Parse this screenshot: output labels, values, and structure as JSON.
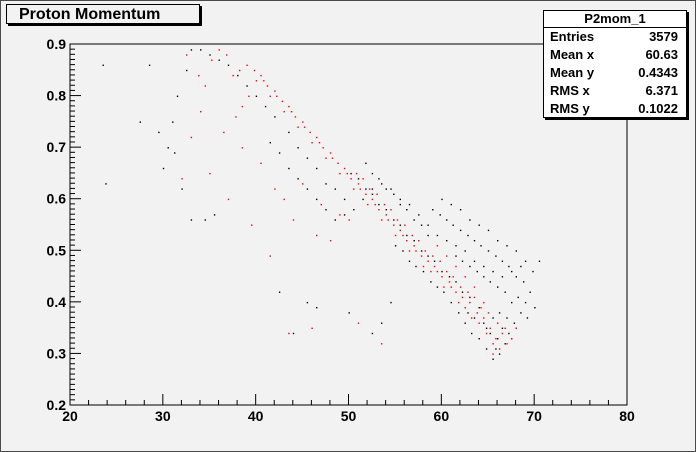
{
  "title": "Proton Momentum",
  "stats": {
    "name": "P2mom_1",
    "rows": [
      {
        "label": "Entries",
        "value": "3579"
      },
      {
        "label": "Mean x",
        "value": "60.63"
      },
      {
        "label": "Mean y",
        "value": "0.4343"
      },
      {
        "label": "RMS x",
        "value": "6.371"
      },
      {
        "label": "RMS y",
        "value": "0.1022"
      }
    ]
  },
  "chart_data": {
    "type": "scatter",
    "title": "Proton Momentum",
    "xlabel": "",
    "ylabel": "",
    "xlim": [
      20,
      80
    ],
    "ylim": [
      0.2,
      0.9
    ],
    "x_ticks": [
      "20",
      "30",
      "40",
      "50",
      "60",
      "70",
      "80"
    ],
    "y_ticks": [
      "0.2",
      "0.3",
      "0.4",
      "0.5",
      "0.6",
      "0.7",
      "0.8",
      "0.9"
    ],
    "grid": false,
    "colors": {
      "series_a": "#000000",
      "series_b": "#ff0000"
    },
    "series": [
      {
        "color": "#000000",
        "points": [
          [
            64.5,
            0.36
          ],
          [
            65.2,
            0.34
          ],
          [
            66.0,
            0.33
          ],
          [
            66.8,
            0.32
          ],
          [
            65.8,
            0.31
          ],
          [
            64.8,
            0.35
          ],
          [
            63.5,
            0.37
          ],
          [
            62.8,
            0.38
          ],
          [
            66.5,
            0.35
          ],
          [
            67.2,
            0.34
          ],
          [
            65.5,
            0.37
          ],
          [
            64.0,
            0.39
          ],
          [
            63.0,
            0.41
          ],
          [
            62.2,
            0.42
          ],
          [
            61.5,
            0.44
          ],
          [
            60.8,
            0.45
          ],
          [
            60.0,
            0.46
          ],
          [
            59.2,
            0.48
          ],
          [
            58.5,
            0.49
          ],
          [
            57.8,
            0.5
          ],
          [
            57.0,
            0.52
          ],
          [
            56.2,
            0.53
          ],
          [
            55.5,
            0.55
          ],
          [
            54.8,
            0.56
          ],
          [
            54.0,
            0.58
          ],
          [
            53.2,
            0.59
          ],
          [
            52.5,
            0.61
          ],
          [
            51.8,
            0.62
          ],
          [
            51.0,
            0.64
          ],
          [
            50.2,
            0.65
          ],
          [
            66.2,
            0.38
          ],
          [
            67.0,
            0.37
          ],
          [
            67.8,
            0.36
          ],
          [
            68.5,
            0.38
          ],
          [
            69.0,
            0.4
          ],
          [
            69.5,
            0.42
          ],
          [
            68.8,
            0.44
          ],
          [
            68.0,
            0.45
          ],
          [
            67.2,
            0.47
          ],
          [
            66.5,
            0.48
          ],
          [
            65.8,
            0.49
          ],
          [
            65.0,
            0.5
          ],
          [
            64.2,
            0.51
          ],
          [
            63.5,
            0.52
          ],
          [
            62.8,
            0.53
          ],
          [
            62.0,
            0.54
          ],
          [
            61.2,
            0.55
          ],
          [
            60.5,
            0.56
          ],
          [
            59.8,
            0.57
          ],
          [
            59.0,
            0.58
          ],
          [
            67.5,
            0.4
          ],
          [
            68.2,
            0.41
          ],
          [
            66.8,
            0.42
          ],
          [
            66.0,
            0.43
          ],
          [
            65.2,
            0.44
          ],
          [
            64.5,
            0.45
          ],
          [
            63.8,
            0.46
          ],
          [
            63.0,
            0.47
          ],
          [
            62.2,
            0.48
          ],
          [
            61.5,
            0.49
          ],
          [
            70.0,
            0.39
          ],
          [
            69.2,
            0.37
          ],
          [
            68.0,
            0.35
          ],
          [
            67.5,
            0.33
          ],
          [
            66.2,
            0.3
          ],
          [
            65.5,
            0.29
          ],
          [
            64.8,
            0.31
          ],
          [
            64.0,
            0.33
          ],
          [
            63.2,
            0.34
          ],
          [
            62.5,
            0.36
          ],
          [
            61.8,
            0.38
          ],
          [
            61.0,
            0.4
          ],
          [
            60.2,
            0.42
          ],
          [
            59.5,
            0.43
          ],
          [
            58.8,
            0.44
          ],
          [
            58.0,
            0.46
          ],
          [
            57.2,
            0.47
          ],
          [
            56.5,
            0.48
          ],
          [
            55.8,
            0.5
          ],
          [
            55.0,
            0.51
          ],
          [
            58.5,
            0.53
          ],
          [
            57.8,
            0.55
          ],
          [
            57.0,
            0.56
          ],
          [
            56.2,
            0.58
          ],
          [
            55.5,
            0.59
          ],
          [
            54.8,
            0.61
          ],
          [
            54.0,
            0.62
          ],
          [
            53.2,
            0.64
          ],
          [
            52.5,
            0.65
          ],
          [
            51.8,
            0.67
          ],
          [
            48.5,
            0.62
          ],
          [
            49.5,
            0.6
          ],
          [
            46.5,
            0.66
          ],
          [
            47.5,
            0.63
          ],
          [
            44.5,
            0.7
          ],
          [
            45.5,
            0.68
          ],
          [
            43.5,
            0.73
          ],
          [
            42.0,
            0.76
          ],
          [
            41.0,
            0.78
          ],
          [
            40.0,
            0.8
          ],
          [
            39.0,
            0.82
          ],
          [
            38.0,
            0.84
          ],
          [
            37.0,
            0.86
          ],
          [
            36.0,
            0.87
          ],
          [
            35.0,
            0.88
          ],
          [
            34.0,
            0.89
          ],
          [
            33.0,
            0.89
          ],
          [
            32.5,
            0.85
          ],
          [
            31.5,
            0.8
          ],
          [
            31.0,
            0.75
          ],
          [
            23.5,
            0.86
          ],
          [
            23.8,
            0.63
          ],
          [
            32.0,
            0.62
          ],
          [
            30.5,
            0.7
          ],
          [
            29.5,
            0.73
          ],
          [
            27.5,
            0.75
          ],
          [
            31.2,
            0.69
          ],
          [
            28.5,
            0.86
          ],
          [
            35.5,
            0.57
          ],
          [
            34.5,
            0.56
          ],
          [
            33.0,
            0.56
          ],
          [
            30.0,
            0.66
          ],
          [
            42.5,
            0.42
          ],
          [
            45.5,
            0.4
          ],
          [
            46.5,
            0.39
          ],
          [
            52.5,
            0.34
          ],
          [
            53.5,
            0.36
          ],
          [
            44.0,
            0.34
          ],
          [
            50.0,
            0.38
          ],
          [
            54.5,
            0.4
          ],
          [
            60.0,
            0.6
          ],
          [
            61.0,
            0.59
          ],
          [
            62.0,
            0.58
          ],
          [
            63.0,
            0.56
          ],
          [
            64.0,
            0.55
          ],
          [
            65.0,
            0.54
          ],
          [
            66.0,
            0.52
          ],
          [
            67.0,
            0.51
          ],
          [
            68.0,
            0.5
          ],
          [
            69.0,
            0.48
          ],
          [
            70.5,
            0.48
          ],
          [
            69.8,
            0.46
          ],
          [
            68.5,
            0.47
          ],
          [
            67.5,
            0.46
          ],
          [
            66.5,
            0.45
          ],
          [
            65.5,
            0.46
          ],
          [
            64.5,
            0.47
          ],
          [
            63.5,
            0.48
          ],
          [
            62.5,
            0.5
          ],
          [
            61.5,
            0.51
          ],
          [
            60.5,
            0.52
          ],
          [
            59.5,
            0.53
          ],
          [
            58.5,
            0.55
          ],
          [
            57.5,
            0.57
          ],
          [
            56.5,
            0.59
          ],
          [
            55.5,
            0.6
          ],
          [
            54.5,
            0.62
          ],
          [
            53.5,
            0.63
          ],
          [
            52.5,
            0.62
          ],
          [
            51.5,
            0.6
          ],
          [
            50.5,
            0.58
          ],
          [
            49.5,
            0.57
          ],
          [
            48.5,
            0.56
          ],
          [
            47.5,
            0.58
          ],
          [
            46.5,
            0.6
          ],
          [
            45.5,
            0.62
          ],
          [
            44.5,
            0.64
          ],
          [
            43.5,
            0.66
          ],
          [
            42.5,
            0.69
          ],
          [
            41.5,
            0.71
          ]
        ]
      },
      {
        "color": "#ff0000",
        "points": [
          [
            66.5,
            0.34
          ],
          [
            65.8,
            0.33
          ],
          [
            66.8,
            0.35
          ],
          [
            65.2,
            0.35
          ],
          [
            64.5,
            0.37
          ],
          [
            63.8,
            0.38
          ],
          [
            63.0,
            0.4
          ],
          [
            62.2,
            0.41
          ],
          [
            61.5,
            0.42
          ],
          [
            60.8,
            0.44
          ],
          [
            60.0,
            0.45
          ],
          [
            59.2,
            0.47
          ],
          [
            58.5,
            0.48
          ],
          [
            57.8,
            0.49
          ],
          [
            57.0,
            0.51
          ],
          [
            56.2,
            0.52
          ],
          [
            55.5,
            0.54
          ],
          [
            54.8,
            0.55
          ],
          [
            54.0,
            0.57
          ],
          [
            53.2,
            0.58
          ],
          [
            52.5,
            0.6
          ],
          [
            51.8,
            0.61
          ],
          [
            51.0,
            0.63
          ],
          [
            50.2,
            0.64
          ],
          [
            49.5,
            0.66
          ],
          [
            48.8,
            0.67
          ],
          [
            48.0,
            0.69
          ],
          [
            47.2,
            0.7
          ],
          [
            46.5,
            0.72
          ],
          [
            45.8,
            0.73
          ],
          [
            45.0,
            0.75
          ],
          [
            44.2,
            0.76
          ],
          [
            43.5,
            0.78
          ],
          [
            42.8,
            0.79
          ],
          [
            42.0,
            0.81
          ],
          [
            41.2,
            0.82
          ],
          [
            40.5,
            0.84
          ],
          [
            39.8,
            0.85
          ],
          [
            39.0,
            0.86
          ],
          [
            38.2,
            0.85
          ],
          [
            37.5,
            0.84
          ],
          [
            36.8,
            0.88
          ],
          [
            36.0,
            0.89
          ],
          [
            35.2,
            0.87
          ],
          [
            34.5,
            0.82
          ],
          [
            33.8,
            0.84
          ],
          [
            32.5,
            0.88
          ],
          [
            34.0,
            0.77
          ],
          [
            33.0,
            0.72
          ],
          [
            32.0,
            0.64
          ],
          [
            67.5,
            0.33
          ],
          [
            66.2,
            0.31
          ],
          [
            65.5,
            0.32
          ],
          [
            64.8,
            0.34
          ],
          [
            64.0,
            0.36
          ],
          [
            63.2,
            0.37
          ],
          [
            62.5,
            0.39
          ],
          [
            61.8,
            0.4
          ],
          [
            61.0,
            0.43
          ],
          [
            60.2,
            0.43
          ],
          [
            59.5,
            0.46
          ],
          [
            58.8,
            0.46
          ],
          [
            58.0,
            0.47
          ],
          [
            57.2,
            0.5
          ],
          [
            56.5,
            0.5
          ],
          [
            55.8,
            0.53
          ],
          [
            55.0,
            0.53
          ],
          [
            54.2,
            0.56
          ],
          [
            53.5,
            0.56
          ],
          [
            52.8,
            0.59
          ],
          [
            52.0,
            0.59
          ],
          [
            51.2,
            0.62
          ],
          [
            50.5,
            0.62
          ],
          [
            49.8,
            0.65
          ],
          [
            49.0,
            0.65
          ],
          [
            48.2,
            0.68
          ],
          [
            47.5,
            0.68
          ],
          [
            46.8,
            0.71
          ],
          [
            46.0,
            0.71
          ],
          [
            45.2,
            0.74
          ],
          [
            44.5,
            0.74
          ],
          [
            43.8,
            0.77
          ],
          [
            43.0,
            0.77
          ],
          [
            42.2,
            0.8
          ],
          [
            41.5,
            0.8
          ],
          [
            40.8,
            0.83
          ],
          [
            40.0,
            0.83
          ],
          [
            39.2,
            0.8
          ],
          [
            38.5,
            0.78
          ],
          [
            37.8,
            0.76
          ],
          [
            65.0,
            0.38
          ],
          [
            64.2,
            0.39
          ],
          [
            63.5,
            0.41
          ],
          [
            62.8,
            0.42
          ],
          [
            62.0,
            0.43
          ],
          [
            61.2,
            0.45
          ],
          [
            60.5,
            0.46
          ],
          [
            59.8,
            0.48
          ],
          [
            59.0,
            0.49
          ],
          [
            58.2,
            0.5
          ],
          [
            57.5,
            0.52
          ],
          [
            56.8,
            0.53
          ],
          [
            56.0,
            0.55
          ],
          [
            55.2,
            0.56
          ],
          [
            54.5,
            0.58
          ],
          [
            53.8,
            0.59
          ],
          [
            53.0,
            0.61
          ],
          [
            52.2,
            0.62
          ],
          [
            51.5,
            0.64
          ],
          [
            50.8,
            0.65
          ],
          [
            66.0,
            0.36
          ],
          [
            67.0,
            0.32
          ],
          [
            68.0,
            0.35
          ],
          [
            65.5,
            0.3
          ],
          [
            64.5,
            0.4
          ],
          [
            63.5,
            0.43
          ],
          [
            62.5,
            0.45
          ],
          [
            61.5,
            0.47
          ],
          [
            60.5,
            0.49
          ],
          [
            59.5,
            0.51
          ],
          [
            44.0,
            0.56
          ],
          [
            46.5,
            0.53
          ],
          [
            48.0,
            0.52
          ],
          [
            35.0,
            0.65
          ],
          [
            37.0,
            0.6
          ],
          [
            39.5,
            0.55
          ],
          [
            41.5,
            0.49
          ],
          [
            43.5,
            0.34
          ],
          [
            46.0,
            0.35
          ],
          [
            51.0,
            0.36
          ],
          [
            53.5,
            0.32
          ],
          [
            49.0,
            0.57
          ],
          [
            50.0,
            0.56
          ],
          [
            45.0,
            0.63
          ],
          [
            47.0,
            0.59
          ],
          [
            38.5,
            0.7
          ],
          [
            36.5,
            0.73
          ],
          [
            40.5,
            0.67
          ],
          [
            42.0,
            0.62
          ],
          [
            43.0,
            0.6
          ]
        ]
      }
    ]
  }
}
